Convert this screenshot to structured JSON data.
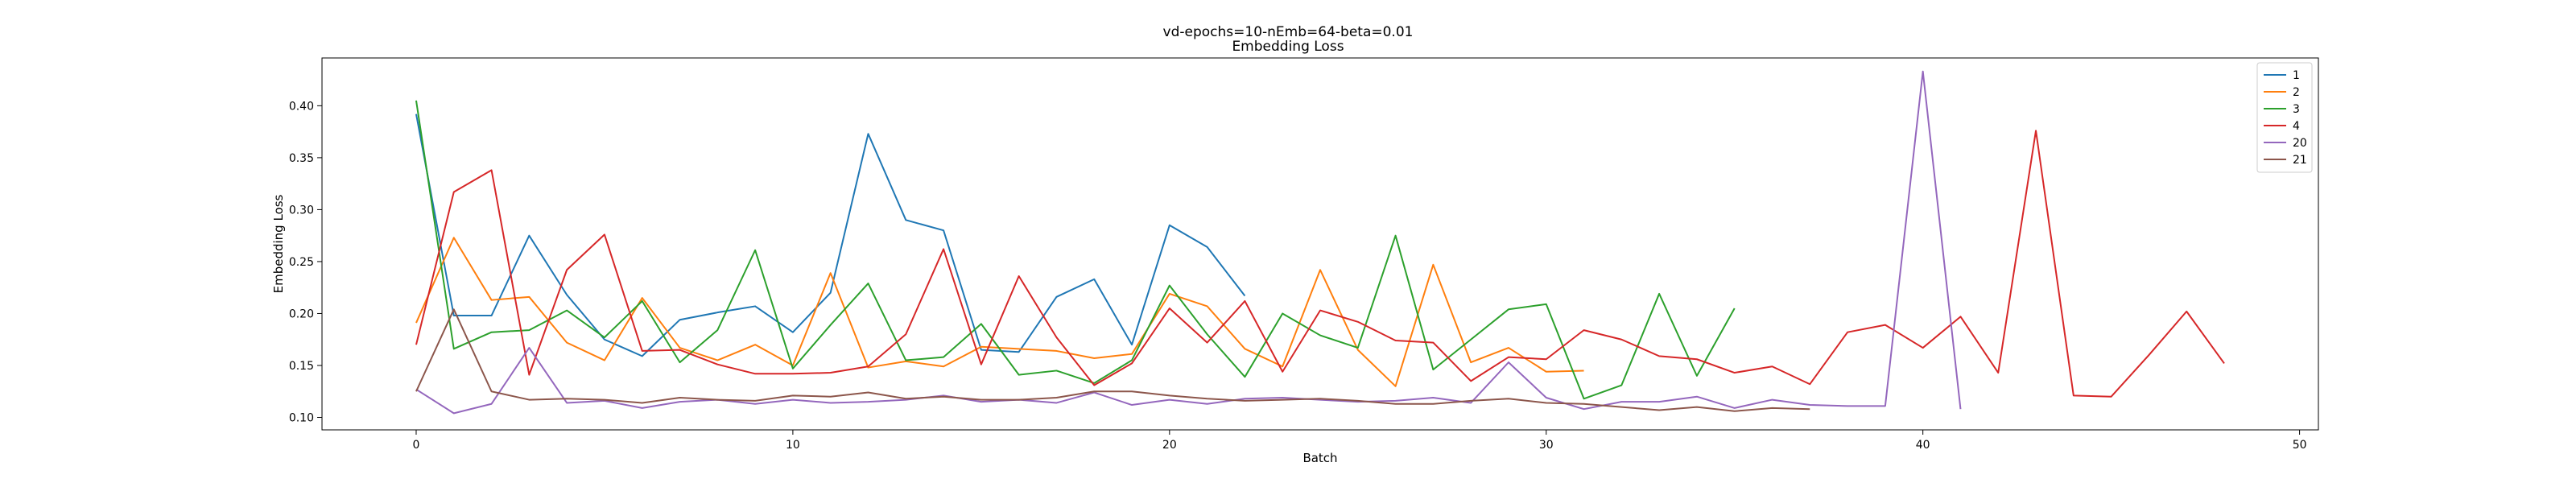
{
  "chart_data": {
    "type": "line",
    "title": "vd-epochs=10-nEmb=64-beta=0.01",
    "subtitle": "Embedding Loss",
    "xlabel": "Batch",
    "ylabel": "Embedding Loss",
    "xlim": [
      -2.5,
      50.5
    ],
    "ylim": [
      0.088,
      0.446
    ],
    "xticks": [
      0,
      10,
      20,
      30,
      40,
      50
    ],
    "yticks": [
      0.1,
      0.15,
      0.2,
      0.25,
      0.3,
      0.35,
      0.4
    ],
    "ytick_labels": [
      "0.10",
      "0.15",
      "0.20",
      "0.25",
      "0.30",
      "0.35",
      "0.40"
    ],
    "legend_position": "top-right",
    "grid": false,
    "series": [
      {
        "name": "1",
        "color": "#1f77b4",
        "x": [
          0,
          1,
          2,
          3,
          4,
          5,
          6,
          7,
          8,
          9,
          10,
          11,
          12,
          13,
          14,
          15,
          16,
          17,
          18,
          19,
          20,
          21,
          22
        ],
        "values": [
          0.392,
          0.198,
          0.198,
          0.275,
          0.218,
          0.175,
          0.159,
          0.194,
          0.201,
          0.207,
          0.182,
          0.22,
          0.373,
          0.29,
          0.28,
          0.165,
          0.163,
          0.216,
          0.233,
          0.17,
          0.285,
          0.264,
          0.217
        ]
      },
      {
        "name": "2",
        "color": "#ff7f0e",
        "x": [
          0,
          1,
          2,
          3,
          4,
          5,
          6,
          7,
          8,
          9,
          10,
          11,
          12,
          13,
          14,
          15,
          16,
          17,
          18,
          19,
          20,
          21,
          22,
          23,
          24,
          25,
          26,
          27,
          28,
          29,
          30,
          31
        ],
        "values": [
          0.191,
          0.273,
          0.213,
          0.216,
          0.172,
          0.155,
          0.215,
          0.167,
          0.155,
          0.17,
          0.15,
          0.239,
          0.148,
          0.154,
          0.149,
          0.168,
          0.166,
          0.164,
          0.157,
          0.161,
          0.219,
          0.207,
          0.166,
          0.149,
          0.242,
          0.165,
          0.13,
          0.247,
          0.153,
          0.167,
          0.144,
          0.145
        ]
      },
      {
        "name": "3",
        "color": "#2ca02c",
        "x": [
          0,
          1,
          2,
          3,
          4,
          5,
          6,
          7,
          8,
          9,
          10,
          11,
          12,
          13,
          14,
          15,
          16,
          17,
          18,
          19,
          20,
          21,
          22,
          23,
          24,
          25,
          26,
          27,
          28,
          29,
          30,
          31,
          32,
          33,
          34,
          35
        ],
        "values": [
          0.405,
          0.166,
          0.182,
          0.184,
          0.203,
          0.177,
          0.212,
          0.153,
          0.184,
          0.261,
          0.147,
          0.189,
          0.229,
          0.155,
          0.158,
          0.19,
          0.141,
          0.145,
          0.133,
          0.155,
          0.227,
          0.18,
          0.139,
          0.2,
          0.179,
          0.167,
          0.275,
          0.146,
          0.175,
          0.204,
          0.209,
          0.118,
          0.131,
          0.219,
          0.14,
          0.205
        ]
      },
      {
        "name": "4",
        "color": "#d62728",
        "x": [
          0,
          1,
          2,
          3,
          4,
          5,
          6,
          7,
          8,
          9,
          10,
          11,
          12,
          13,
          14,
          15,
          16,
          17,
          18,
          19,
          20,
          21,
          22,
          23,
          24,
          25,
          26,
          27,
          28,
          29,
          30,
          31,
          32,
          33,
          34,
          35,
          36,
          37,
          38,
          39,
          40,
          41,
          42,
          43,
          44,
          45,
          46,
          47,
          48
        ],
        "values": [
          0.17,
          0.317,
          0.338,
          0.141,
          0.242,
          0.276,
          0.164,
          0.165,
          0.151,
          0.142,
          0.142,
          0.143,
          0.149,
          0.18,
          0.262,
          0.151,
          0.236,
          0.177,
          0.131,
          0.152,
          0.205,
          0.172,
          0.212,
          0.144,
          0.203,
          0.192,
          0.174,
          0.172,
          0.135,
          0.158,
          0.156,
          0.184,
          0.175,
          0.159,
          0.156,
          0.143,
          0.149,
          0.132,
          0.182,
          0.189,
          0.167,
          0.197,
          0.143,
          0.376,
          0.121,
          0.12,
          0.16,
          0.202,
          0.152
        ]
      },
      {
        "name": "20",
        "color": "#9467bd",
        "x": [
          0,
          1,
          2,
          3,
          4,
          5,
          6,
          7,
          8,
          9,
          10,
          11,
          12,
          13,
          14,
          15,
          16,
          17,
          18,
          19,
          20,
          21,
          22,
          23,
          24,
          25,
          26,
          27,
          28,
          29,
          30,
          31,
          32,
          33,
          34,
          35,
          36,
          37,
          38,
          39,
          40,
          41
        ],
        "values": [
          0.127,
          0.104,
          0.113,
          0.167,
          0.114,
          0.116,
          0.109,
          0.115,
          0.117,
          0.113,
          0.117,
          0.114,
          0.115,
          0.117,
          0.121,
          0.115,
          0.117,
          0.114,
          0.124,
          0.112,
          0.117,
          0.113,
          0.118,
          0.119,
          0.117,
          0.115,
          0.116,
          0.119,
          0.114,
          0.153,
          0.119,
          0.108,
          0.115,
          0.115,
          0.12,
          0.109,
          0.117,
          0.112,
          0.111,
          0.111,
          0.433,
          0.108
        ]
      },
      {
        "name": "21",
        "color": "#8c564b",
        "x": [
          0,
          1,
          2,
          3,
          4,
          5,
          6,
          7,
          8,
          9,
          10,
          11,
          12,
          13,
          14,
          15,
          16,
          17,
          18,
          19,
          20,
          21,
          22,
          23,
          24,
          25,
          26,
          27,
          28,
          29,
          30,
          31,
          32,
          33,
          34,
          35,
          36,
          37
        ],
        "values": [
          0.125,
          0.204,
          0.125,
          0.117,
          0.118,
          0.117,
          0.114,
          0.119,
          0.117,
          0.116,
          0.121,
          0.12,
          0.124,
          0.118,
          0.12,
          0.117,
          0.117,
          0.119,
          0.125,
          0.125,
          0.121,
          0.118,
          0.116,
          0.117,
          0.118,
          0.116,
          0.113,
          0.113,
          0.116,
          0.118,
          0.114,
          0.113,
          0.11,
          0.107,
          0.11,
          0.106,
          0.109,
          0.108
        ]
      }
    ]
  }
}
